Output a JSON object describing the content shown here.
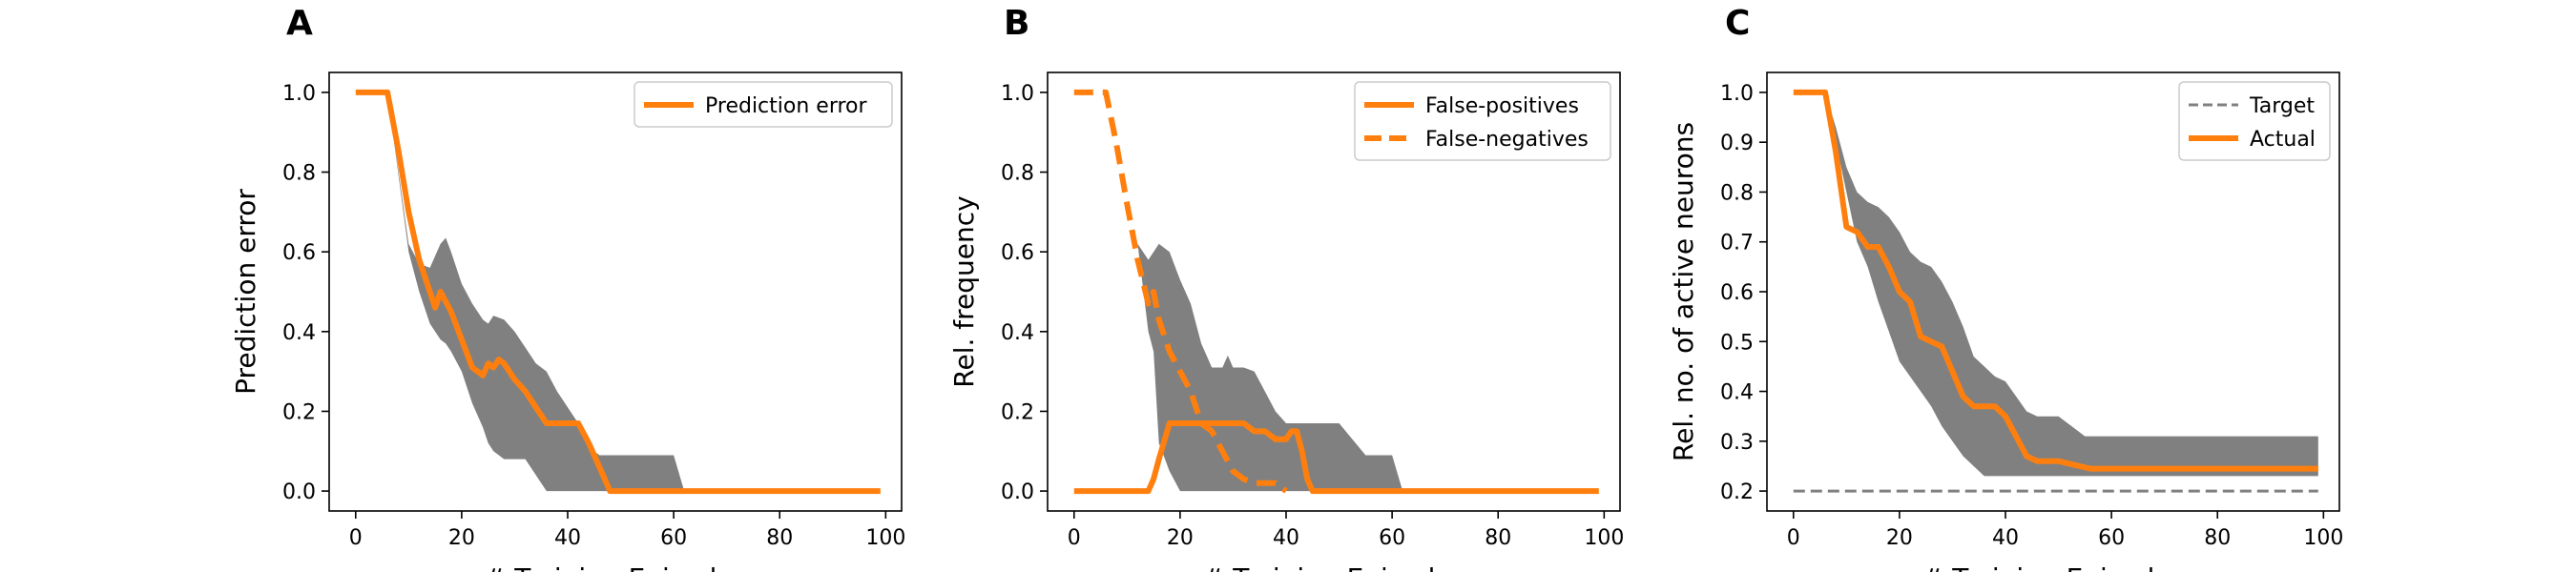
{
  "chart_data": [
    {
      "type": "line",
      "panel_label": "A",
      "title": "",
      "xlabel": "# Training Episodes",
      "ylabel": "Prediction error",
      "xlim": [
        -5,
        103
      ],
      "ylim": [
        -0.05,
        1.05
      ],
      "xticks": [
        "0",
        "20",
        "40",
        "60",
        "80",
        "100"
      ],
      "yticks": [
        "0.0",
        "0.2",
        "0.4",
        "0.6",
        "0.8",
        "1.0"
      ],
      "legend_position": "top-right",
      "band": {
        "color": "#808080",
        "x": [
          0,
          6,
          10,
          12,
          14,
          16,
          17,
          18,
          20,
          22,
          24,
          25,
          26,
          28,
          30,
          32,
          34,
          36,
          38,
          40,
          42,
          44,
          45,
          46,
          48,
          50,
          55,
          60,
          62,
          70,
          80,
          90,
          99
        ],
        "upper": [
          1,
          1,
          0.62,
          0.57,
          0.56,
          0.62,
          0.635,
          0.6,
          0.52,
          0.47,
          0.43,
          0.42,
          0.44,
          0.43,
          0.4,
          0.36,
          0.32,
          0.3,
          0.25,
          0.21,
          0.17,
          0.12,
          0.1,
          0.09,
          0.09,
          0.09,
          0.09,
          0.09,
          0.0,
          0.0,
          0.0,
          0.0,
          0.0
        ],
        "lower": [
          1,
          1,
          0.6,
          0.5,
          0.42,
          0.38,
          0.37,
          0.35,
          0.3,
          0.22,
          0.16,
          0.12,
          0.1,
          0.08,
          0.08,
          0.08,
          0.04,
          0.0,
          0.0,
          0.0,
          0.0,
          0.0,
          0.0,
          0.0,
          0.0,
          0.0,
          0.0,
          0.0,
          0.0,
          0.0,
          0.0,
          0.0,
          0.0
        ]
      },
      "series": [
        {
          "name": "Prediction error",
          "color": "#ff7f0e",
          "dash": "solid",
          "x": [
            0,
            6,
            8,
            10,
            12,
            14,
            15,
            16,
            18,
            20,
            22,
            24,
            25,
            26,
            27,
            28,
            30,
            32,
            34,
            36,
            38,
            40,
            42,
            44,
            46,
            48,
            50,
            60,
            70,
            80,
            90,
            99
          ],
          "y": [
            1,
            1,
            0.86,
            0.7,
            0.58,
            0.5,
            0.46,
            0.5,
            0.45,
            0.38,
            0.31,
            0.29,
            0.32,
            0.31,
            0.33,
            0.32,
            0.28,
            0.25,
            0.21,
            0.17,
            0.17,
            0.17,
            0.17,
            0.12,
            0.06,
            0.0,
            0.0,
            0.0,
            0.0,
            0.0,
            0.0,
            0.0
          ]
        }
      ]
    },
    {
      "type": "line",
      "panel_label": "B",
      "title": "",
      "xlabel": "# Training Episodes",
      "ylabel": "Rel. frequency",
      "xlim": [
        -5,
        103
      ],
      "ylim": [
        -0.05,
        1.05
      ],
      "xticks": [
        "0",
        "20",
        "40",
        "60",
        "80",
        "100"
      ],
      "yticks": [
        "0.0",
        "0.2",
        "0.4",
        "0.6",
        "0.8",
        "1.0"
      ],
      "legend_position": "top-right",
      "band": {
        "color": "#808080",
        "x": [
          0,
          5,
          8,
          10,
          12,
          14,
          15,
          16,
          18,
          20,
          22,
          24,
          26,
          28,
          29,
          30,
          32,
          34,
          36,
          38,
          40,
          42,
          44,
          46,
          50,
          55,
          60,
          62,
          70,
          80,
          90,
          99
        ],
        "upper": [
          1,
          1,
          0.85,
          0.72,
          0.62,
          0.58,
          0.6,
          0.62,
          0.6,
          0.53,
          0.47,
          0.37,
          0.31,
          0.31,
          0.34,
          0.31,
          0.31,
          0.3,
          0.25,
          0.2,
          0.17,
          0.17,
          0.17,
          0.17,
          0.17,
          0.09,
          0.09,
          0.0,
          0.0,
          0.0,
          0.0,
          0.0
        ],
        "lower": [
          1,
          1,
          0.85,
          0.72,
          0.62,
          0.4,
          0.35,
          0.12,
          0.05,
          0.0,
          0.0,
          0.0,
          0.0,
          0.0,
          0.0,
          0.0,
          0.0,
          0.0,
          0.0,
          0.0,
          0.0,
          0.0,
          0.0,
          0.0,
          0.0,
          0.0,
          0.0,
          0.0,
          0.0,
          0.0,
          0.0,
          0.0
        ]
      },
      "series": [
        {
          "name": "False-positives",
          "color": "#ff7f0e",
          "dash": "solid",
          "x": [
            0,
            14,
            15,
            16,
            18,
            20,
            25,
            30,
            32,
            34,
            36,
            38,
            40,
            41,
            42,
            43,
            44,
            45,
            50,
            60,
            70,
            80,
            90,
            99
          ],
          "y": [
            0,
            0,
            0.03,
            0.08,
            0.17,
            0.17,
            0.17,
            0.17,
            0.17,
            0.15,
            0.15,
            0.13,
            0.13,
            0.15,
            0.15,
            0.1,
            0.03,
            0.0,
            0.0,
            0.0,
            0.0,
            0.0,
            0.0,
            0.0
          ]
        },
        {
          "name": "False-negatives",
          "color": "#ff7f0e",
          "dash": "dashed",
          "x": [
            0,
            6,
            8,
            10,
            12,
            14,
            15,
            16,
            18,
            20,
            22,
            24,
            26,
            28,
            30,
            32,
            34,
            36,
            38,
            40
          ],
          "y": [
            1,
            1,
            0.87,
            0.72,
            0.58,
            0.47,
            0.5,
            0.43,
            0.35,
            0.3,
            0.25,
            0.17,
            0.15,
            0.1,
            0.05,
            0.03,
            0.02,
            0.02,
            0.02,
            0.0
          ]
        }
      ]
    },
    {
      "type": "line",
      "panel_label": "C",
      "title": "",
      "xlabel": "# Training Episodes",
      "ylabel": "Rel. no. of active neurons",
      "xlim": [
        -5,
        103
      ],
      "ylim": [
        0.16,
        1.04
      ],
      "xticks": [
        "0",
        "20",
        "40",
        "60",
        "80",
        "100"
      ],
      "yticks": [
        "0.2",
        "0.3",
        "0.4",
        "0.5",
        "0.6",
        "0.7",
        "0.8",
        "0.9",
        "1.0"
      ],
      "legend_position": "top-right",
      "band": {
        "color": "#808080",
        "x": [
          0,
          6,
          8,
          10,
          12,
          14,
          16,
          18,
          20,
          22,
          24,
          26,
          28,
          30,
          32,
          34,
          36,
          38,
          40,
          42,
          44,
          46,
          48,
          50,
          55,
          60,
          70,
          80,
          90,
          99
        ],
        "upper": [
          1,
          1,
          0.93,
          0.85,
          0.8,
          0.78,
          0.77,
          0.75,
          0.72,
          0.68,
          0.66,
          0.65,
          0.62,
          0.58,
          0.53,
          0.47,
          0.45,
          0.43,
          0.42,
          0.39,
          0.36,
          0.35,
          0.35,
          0.35,
          0.31,
          0.31,
          0.31,
          0.31,
          0.31,
          0.31
        ],
        "lower": [
          1,
          1,
          0.9,
          0.8,
          0.7,
          0.65,
          0.58,
          0.52,
          0.46,
          0.43,
          0.4,
          0.37,
          0.33,
          0.3,
          0.27,
          0.25,
          0.23,
          0.23,
          0.23,
          0.23,
          0.23,
          0.23,
          0.23,
          0.23,
          0.23,
          0.23,
          0.23,
          0.23,
          0.23,
          0.23
        ]
      },
      "series": [
        {
          "name": "Target",
          "color": "#808080",
          "dash": "thin-dashed",
          "x": [
            0,
            99
          ],
          "y": [
            0.2,
            0.2
          ]
        },
        {
          "name": "Actual",
          "color": "#ff7f0e",
          "dash": "solid",
          "x": [
            0,
            6,
            8,
            10,
            12,
            14,
            16,
            18,
            20,
            22,
            24,
            26,
            28,
            30,
            32,
            34,
            36,
            38,
            40,
            42,
            44,
            46,
            48,
            50,
            52,
            54,
            56,
            60,
            70,
            80,
            90,
            99
          ],
          "y": [
            1,
            1,
            0.88,
            0.73,
            0.72,
            0.69,
            0.69,
            0.65,
            0.6,
            0.58,
            0.51,
            0.5,
            0.49,
            0.44,
            0.39,
            0.37,
            0.37,
            0.37,
            0.35,
            0.31,
            0.27,
            0.26,
            0.26,
            0.26,
            0.255,
            0.25,
            0.245,
            0.245,
            0.245,
            0.245,
            0.245,
            0.245
          ]
        }
      ]
    }
  ]
}
